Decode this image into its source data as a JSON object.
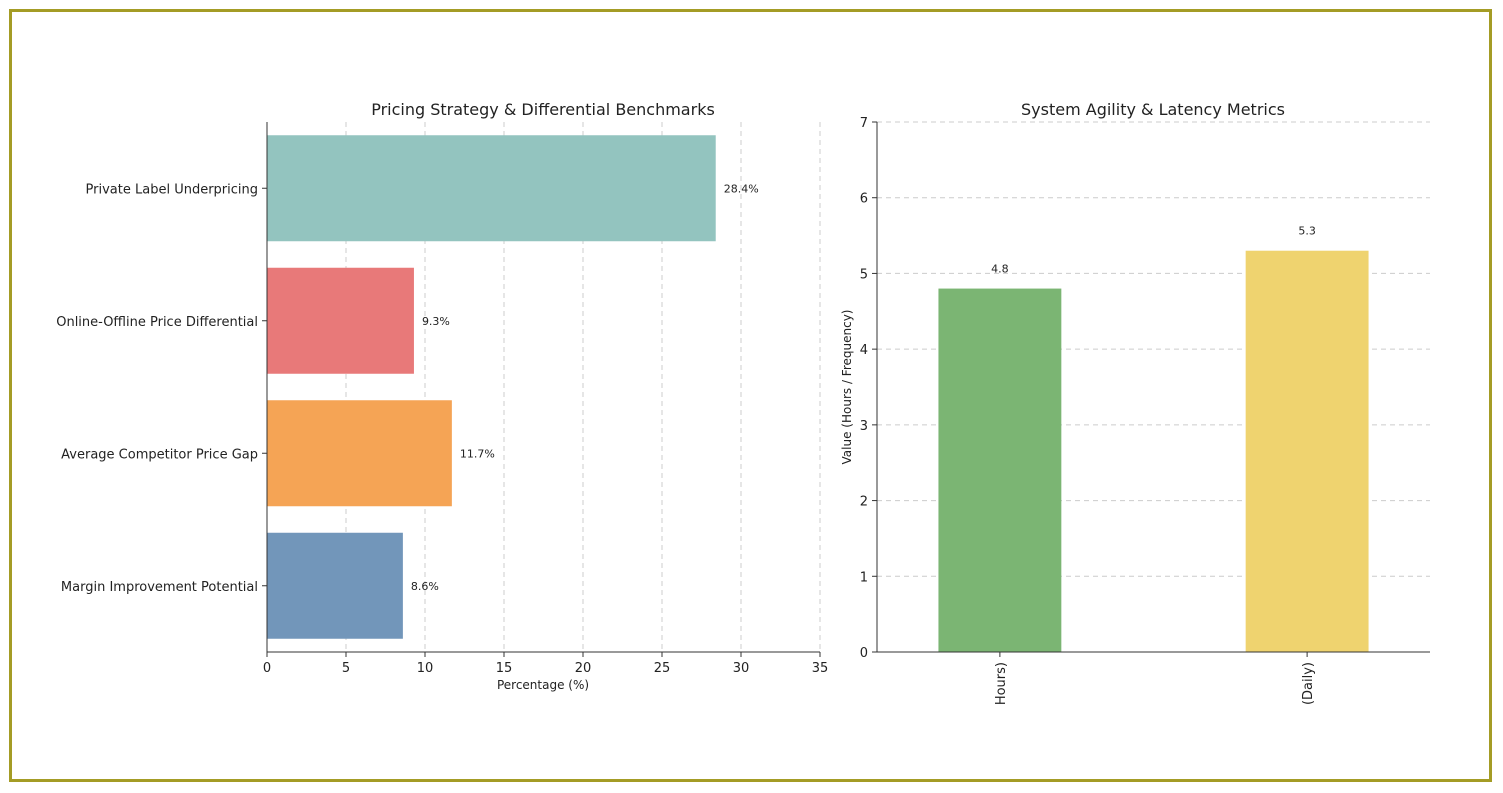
{
  "chart_data": [
    {
      "type": "bar",
      "orientation": "horizontal",
      "title": "Pricing Strategy & Differential Benchmarks",
      "xlabel": "Percentage (%)",
      "ylabel": "",
      "xlim": [
        0,
        35
      ],
      "xticks": [
        0,
        5,
        10,
        15,
        20,
        25,
        30,
        35
      ],
      "grid": "x-dashed",
      "categories": [
        "Private Label Underpricing",
        "Online-Offline Price Differential",
        "Average Competitor Price Gap",
        "Margin Improvement Potential"
      ],
      "values": [
        28.4,
        9.3,
        11.7,
        8.6
      ],
      "data_labels": [
        "28.4%",
        "9.3%",
        "11.7%",
        "8.6%"
      ],
      "colors": [
        "#93c4bf",
        "#e87979",
        "#f5a455",
        "#7296ba"
      ]
    },
    {
      "type": "bar",
      "orientation": "vertical",
      "title": "System Agility & Latency Metrics",
      "xlabel": "",
      "ylabel": "Value (Hours / Frequency)",
      "ylim": [
        0,
        7
      ],
      "yticks": [
        0,
        1,
        2,
        3,
        4,
        5,
        6,
        7
      ],
      "grid": "y-dashed",
      "categories": [
        "Hours)",
        "(Daily)"
      ],
      "values": [
        4.8,
        5.3
      ],
      "data_labels": [
        "4.8",
        "5.3"
      ],
      "colors": [
        "#7bb573",
        "#efd36f"
      ]
    }
  ]
}
